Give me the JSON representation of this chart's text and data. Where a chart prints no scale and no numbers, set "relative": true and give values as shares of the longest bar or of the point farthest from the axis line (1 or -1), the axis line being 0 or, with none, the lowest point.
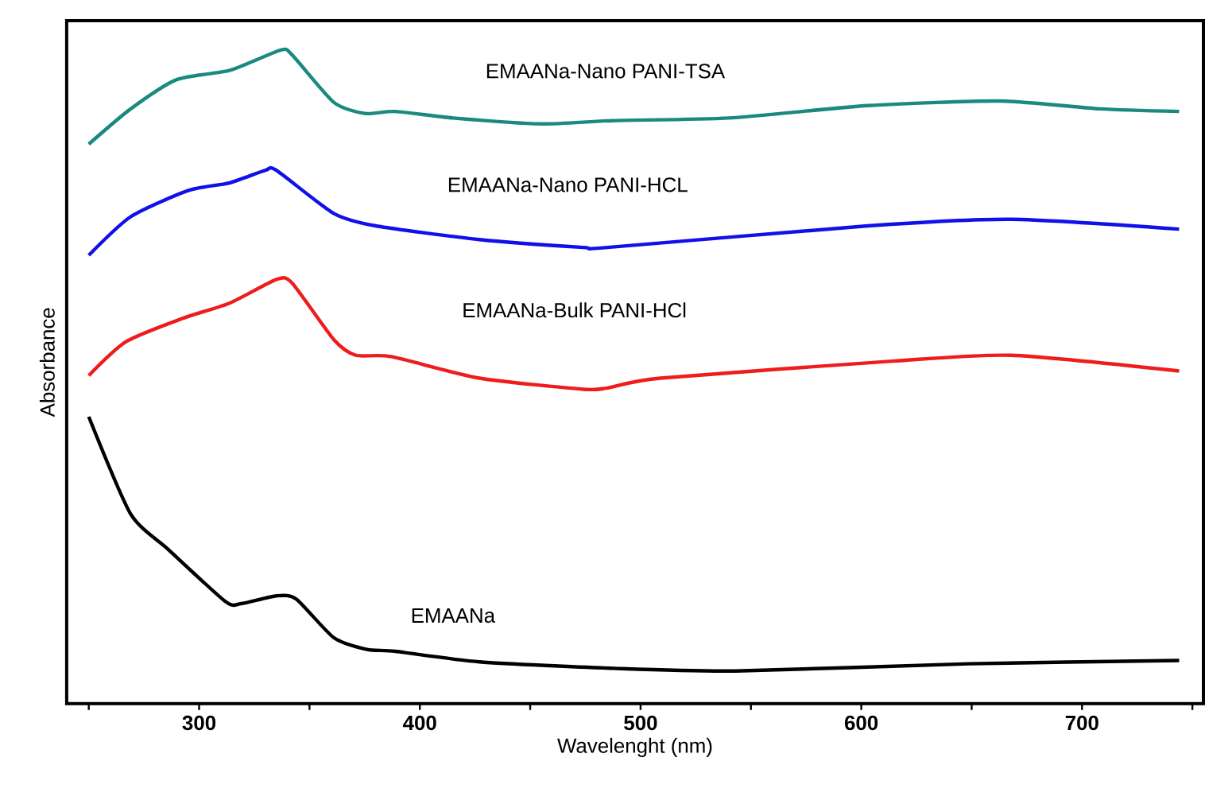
{
  "chart_data": {
    "type": "line",
    "relative": true,
    "xlabel": "Wavelenght (nm)",
    "ylabel": "Absorbance",
    "xlim": [
      240,
      755
    ],
    "xticks": [
      {
        "value": 250,
        "label": null
      },
      300,
      {
        "value": 350,
        "label": null
      },
      400,
      {
        "value": 450,
        "label": null
      },
      500,
      {
        "value": 550,
        "label": null
      },
      600,
      {
        "value": 650,
        "label": null
      },
      700,
      {
        "value": 750,
        "label": null
      }
    ],
    "series": [
      {
        "name": "EMAANa-Nano PANI-TSA",
        "color": "#1a8a7e",
        "x": [
          250,
          269,
          290,
          314,
          337,
          342,
          361,
          375,
          389,
          415,
          455,
          487,
          540,
          603,
          663,
          708,
          744
        ],
        "values": [
          0.856,
          0.91,
          0.955,
          0.969,
          1,
          0.993,
          0.92,
          0.903,
          0.906,
          0.896,
          0.887,
          0.892,
          0.896,
          0.915,
          0.922,
          0.91,
          0.906
        ]
      },
      {
        "name": "EMAANa-Nano PANI-HCL",
        "color": "#1010e8",
        "x": [
          250,
          269,
          295,
          314,
          330,
          335,
          361,
          380,
          427,
          474,
          485,
          603,
          668,
          744
        ],
        "values": [
          0.686,
          0.745,
          0.785,
          0.797,
          0.816,
          0.816,
          0.75,
          0.731,
          0.71,
          0.698,
          0.698,
          0.731,
          0.741,
          0.726
        ]
      },
      {
        "name": "EMAANa-Bulk PANI-HCl",
        "color": "#ee1c1c",
        "x": [
          250,
          267,
          293,
          314,
          335,
          342,
          361,
          371,
          387,
          427,
          474,
          485,
          509,
          614,
          668,
          744
        ],
        "values": [
          0.502,
          0.554,
          0.59,
          0.613,
          0.649,
          0.644,
          0.557,
          0.533,
          0.531,
          0.498,
          0.481,
          0.483,
          0.498,
          0.524,
          0.533,
          0.509
        ]
      },
      {
        "name": "EMAANa",
        "color": "#000000",
        "x": [
          250,
          269,
          286,
          312,
          319,
          335,
          344,
          361,
          376,
          389,
          427,
          488,
          543,
          649,
          744
        ],
        "values": [
          0.439,
          0.29,
          0.236,
          0.156,
          0.153,
          0.165,
          0.16,
          0.101,
          0.083,
          0.08,
          0.064,
          0.054,
          0.05,
          0.061,
          0.066
        ]
      }
    ]
  }
}
